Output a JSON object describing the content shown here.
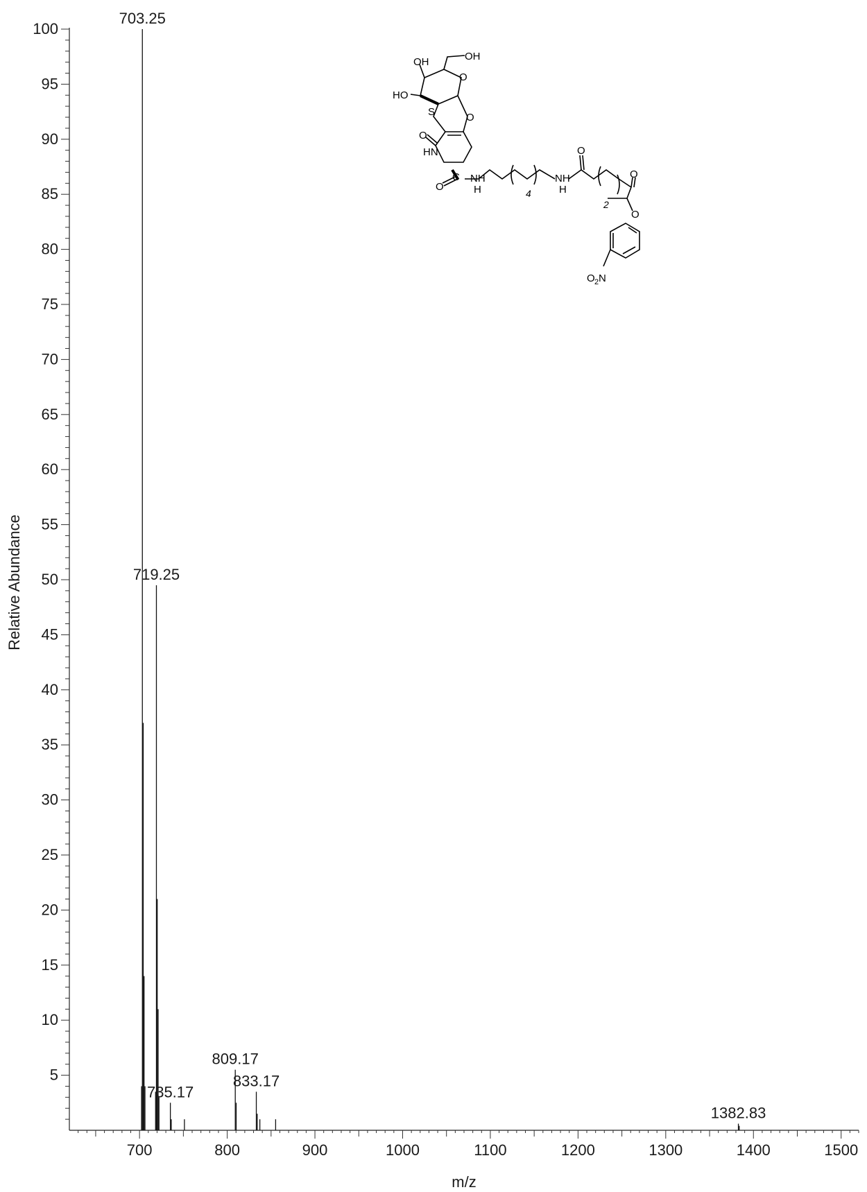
{
  "chart_data": {
    "type": "bar",
    "xlabel": "m/z",
    "ylabel": "Relative Abundance",
    "xlim": [
      620,
      1520
    ],
    "ylim": [
      0,
      100
    ],
    "x_ticks": [
      700,
      800,
      900,
      1000,
      1100,
      1200,
      1300,
      1400,
      1500
    ],
    "y_ticks": [
      5,
      10,
      15,
      20,
      25,
      30,
      35,
      40,
      45,
      50,
      55,
      60,
      65,
      70,
      75,
      80,
      85,
      90,
      95,
      100
    ],
    "peaks": [
      {
        "mz": 702.3,
        "abundance": 4.0
      },
      {
        "mz": 703.25,
        "abundance": 100,
        "label": "703.25"
      },
      {
        "mz": 704.2,
        "abundance": 37.0
      },
      {
        "mz": 705.2,
        "abundance": 14.0
      },
      {
        "mz": 706.2,
        "abundance": 4.0
      },
      {
        "mz": 718.3,
        "abundance": 3.5
      },
      {
        "mz": 719.25,
        "abundance": 49.5,
        "label": "719.25"
      },
      {
        "mz": 720.2,
        "abundance": 21.0
      },
      {
        "mz": 721.2,
        "abundance": 11.0
      },
      {
        "mz": 722.2,
        "abundance": 3.0
      },
      {
        "mz": 735.17,
        "abundance": 2.5,
        "label": "735.17"
      },
      {
        "mz": 736.2,
        "abundance": 1.0
      },
      {
        "mz": 751.2,
        "abundance": 1.0
      },
      {
        "mz": 809.17,
        "abundance": 5.5,
        "label": "809.17"
      },
      {
        "mz": 810.2,
        "abundance": 2.5
      },
      {
        "mz": 833.17,
        "abundance": 3.5,
        "label": "833.17"
      },
      {
        "mz": 834.2,
        "abundance": 1.5
      },
      {
        "mz": 837.2,
        "abundance": 1.0
      },
      {
        "mz": 855.2,
        "abundance": 1.0
      },
      {
        "mz": 1382.83,
        "abundance": 0.6,
        "label": "1382.83"
      },
      {
        "mz": 1383.8,
        "abundance": 0.4
      }
    ]
  },
  "structure": {
    "labels": {
      "oh1": "OH",
      "oh2": "OH",
      "ho": "HO",
      "o_ring": "O",
      "s": "S",
      "o_ring2": "O",
      "o_carbonyl1": "O",
      "hn": "HN",
      "o_amide": "O",
      "c_amide": "C",
      "nh1": "NH",
      "h1": "H",
      "rep4": "4",
      "nh2": "NH",
      "h2": "H",
      "o_amide2": "O",
      "rep2": "2",
      "o_ester": "O",
      "o_ester2": "O",
      "o2n": "O",
      "o2n_sub": "2",
      "o2n_n": "N"
    }
  }
}
